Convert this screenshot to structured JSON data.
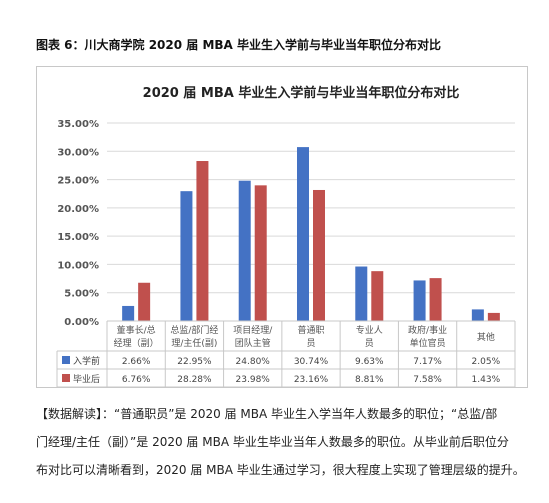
{
  "caption": "图表 6：川大商学院 2020 届 MBA 毕业生入学前与毕业当年职位分布对比",
  "notes": [
    "【数据解读】：“普通职员”是 2020 届 MBA 毕业生入学当年人数最多的职位；“总监/部",
    "门经理/主任（副）”是 2020 届 MBA 毕业生毕业当年人数最多的职位。从毕业前后职位分",
    "布对比可以清晰看到，2020 届 MBA 毕业生通过学习，很大程度上实现了管理层级的提升。"
  ],
  "chart_data": {
    "type": "bar",
    "title": "2020 届 MBA 毕业生入学前与毕业当年职位分布对比",
    "categories": [
      [
        "董事长/总",
        "经理（副）"
      ],
      [
        "总监/部门经",
        "理/主任(副)"
      ],
      [
        "项目经理/",
        "团队主管"
      ],
      [
        "普通职",
        "员"
      ],
      [
        "专业人",
        "员"
      ],
      [
        "政府/事业",
        "单位官员"
      ],
      [
        "其他"
      ]
    ],
    "series": [
      {
        "name": "入学前",
        "color": "#4472C4",
        "values": [
          2.66,
          22.95,
          24.8,
          30.74,
          9.63,
          7.17,
          2.05
        ],
        "labels": [
          "2.66%",
          "22.95%",
          "24.80%",
          "30.74%",
          "9.63%",
          "7.17%",
          "2.05%"
        ]
      },
      {
        "name": "毕业后",
        "color": "#C0504D",
        "values": [
          6.76,
          28.28,
          23.98,
          23.16,
          8.81,
          7.58,
          1.43
        ],
        "labels": [
          "6.76%",
          "28.28%",
          "23.98%",
          "23.16%",
          "8.81%",
          "7.58%",
          "1.43%"
        ]
      }
    ],
    "yticks": [
      "35.00%",
      "30.00%",
      "25.00%",
      "20.00%",
      "15.00%",
      "10.00%",
      "5.00%",
      "0.00%"
    ],
    "ylim": [
      0,
      35
    ],
    "grid": true,
    "legend": "data table below chart"
  }
}
